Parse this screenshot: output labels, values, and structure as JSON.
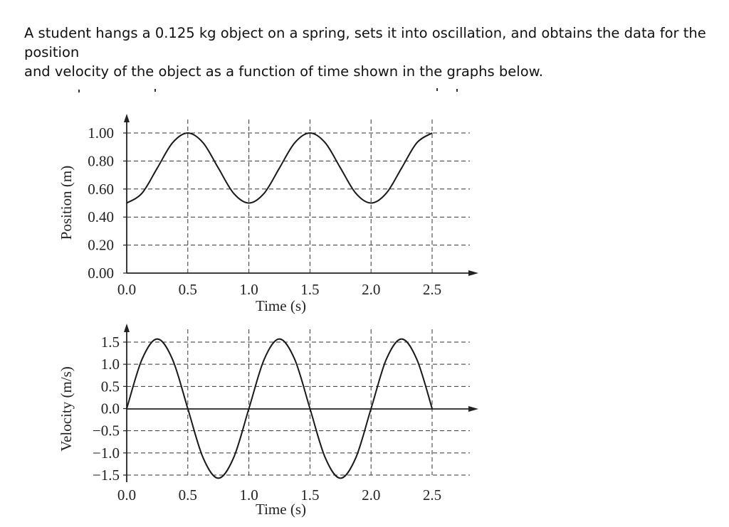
{
  "problem": {
    "line1": "A student hangs a 0.125 kg object on a spring, sets it into oscillation, and obtains the data for the position",
    "line2": "and velocity of the object as a function of time shown in the graphs below."
  },
  "chart_data": [
    {
      "type": "line",
      "xlabel": "Time (s)",
      "ylabel": "Position (m)",
      "xlim": [
        0.0,
        2.5
      ],
      "ylim": [
        0.0,
        1.0
      ],
      "xticks": [
        0.0,
        0.5,
        1.0,
        1.5,
        2.0,
        2.5
      ],
      "xtick_labels": [
        "0.0",
        "0.5",
        "1.0",
        "1.5",
        "2.0",
        "2.5"
      ],
      "yticks": [
        0.0,
        0.2,
        0.4,
        0.6,
        0.8,
        1.0
      ],
      "ytick_labels": [
        "0.00",
        "0.20",
        "0.40",
        "0.60",
        "0.80",
        "1.00"
      ],
      "grid": true,
      "series": [
        {
          "x": [
            0.0,
            0.125,
            0.25,
            0.375,
            0.5,
            0.625,
            0.75,
            0.875,
            1.0,
            1.125,
            1.25,
            1.375,
            1.5,
            1.625,
            1.75,
            1.875,
            2.0,
            2.125,
            2.25,
            2.375,
            2.5
          ],
          "values": [
            0.5,
            0.57,
            0.75,
            0.93,
            1.0,
            0.93,
            0.75,
            0.57,
            0.5,
            0.57,
            0.75,
            0.93,
            1.0,
            0.93,
            0.75,
            0.57,
            0.5,
            0.57,
            0.75,
            0.93,
            1.0
          ]
        }
      ]
    },
    {
      "type": "line",
      "xlabel": "Time (s)",
      "ylabel": "Velocity (m/s)",
      "xlim": [
        0.0,
        2.5
      ],
      "ylim": [
        -1.5,
        1.5
      ],
      "xticks": [
        0.0,
        0.5,
        1.0,
        1.5,
        2.0,
        2.5
      ],
      "xtick_labels": [
        "0.0",
        "0.5",
        "1.0",
        "1.5",
        "2.0",
        "2.5"
      ],
      "yticks": [
        1.5,
        1.0,
        0.5,
        0.0,
        -0.5,
        -1.0,
        -1.5
      ],
      "ytick_labels": [
        "1.5",
        "1.0",
        "0.5",
        "0.0",
        "−0.5",
        "−1.0",
        "−1.5"
      ],
      "grid": true,
      "series": [
        {
          "x": [
            0.0,
            0.125,
            0.25,
            0.375,
            0.5,
            0.625,
            0.75,
            0.875,
            1.0,
            1.125,
            1.25,
            1.375,
            1.5,
            1.625,
            1.75,
            1.875,
            2.0,
            2.125,
            2.25,
            2.375,
            2.5
          ],
          "values": [
            0.0,
            1.11,
            1.57,
            1.11,
            0.0,
            -1.11,
            -1.57,
            -1.11,
            0.0,
            1.11,
            1.57,
            1.11,
            0.0,
            -1.11,
            -1.57,
            -1.11,
            0.0,
            1.11,
            1.57,
            1.11,
            0.0
          ]
        }
      ]
    }
  ]
}
